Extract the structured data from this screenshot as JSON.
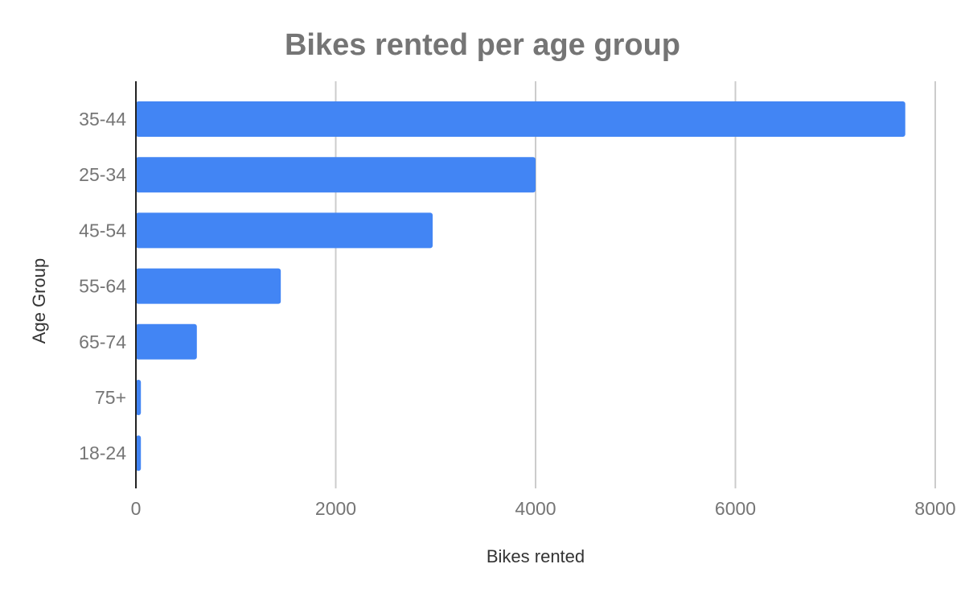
{
  "chart_data": {
    "type": "bar",
    "orientation": "horizontal",
    "title": "Bikes rented per age group",
    "xlabel": "Bikes rented",
    "ylabel": "Age Group",
    "categories": [
      "35-44",
      "25-34",
      "45-54",
      "55-64",
      "65-74",
      "75+",
      "18-24"
    ],
    "values": [
      7700,
      4000,
      2970,
      1450,
      610,
      50,
      50
    ],
    "xlim": [
      0,
      8000
    ],
    "xticks": [
      0,
      2000,
      4000,
      6000,
      8000
    ],
    "grid": true,
    "legend": "none",
    "colors": {
      "bar": "#4285f4"
    }
  }
}
